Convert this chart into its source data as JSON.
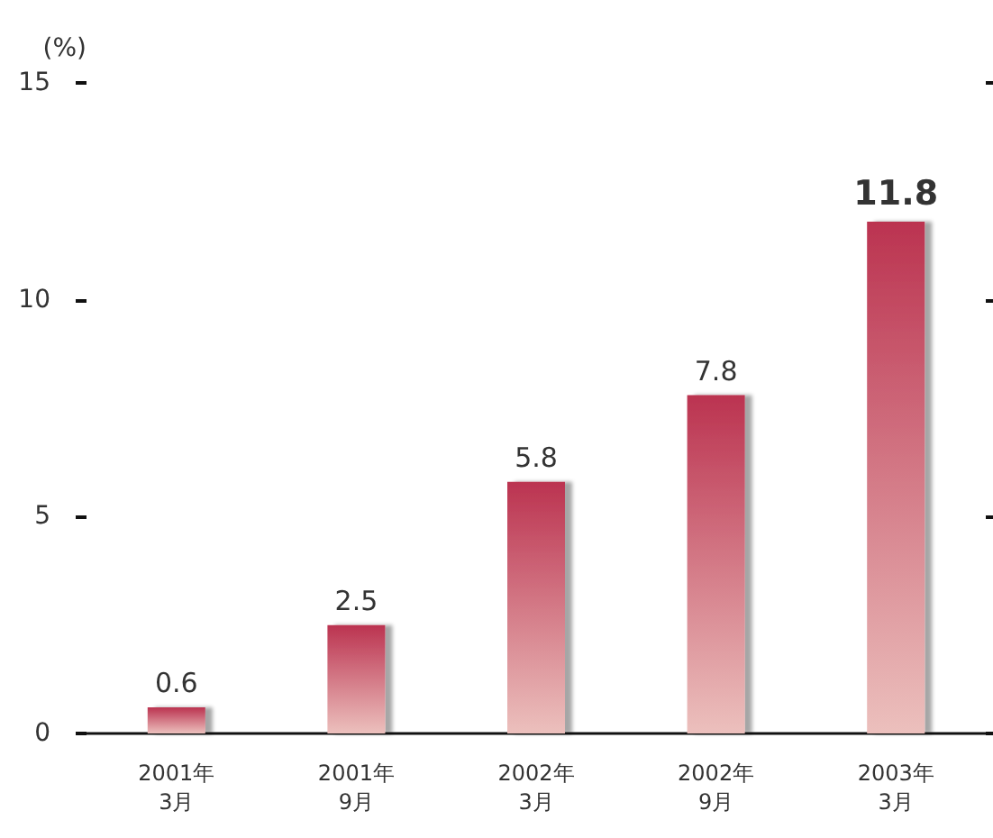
{
  "chart_data": {
    "type": "bar",
    "ylabel": "(%)",
    "categories": [
      "2001年\n3月",
      "2001年\n9月",
      "2002年\n3月",
      "2002年\n9月",
      "2003年\n3月"
    ],
    "values": [
      0.6,
      2.5,
      5.8,
      7.8,
      11.8
    ],
    "color": "#bb3350",
    "ylim": [
      0,
      15
    ],
    "yticks": [
      0,
      5,
      10,
      15
    ],
    "grid": false,
    "data_labels": true
  }
}
